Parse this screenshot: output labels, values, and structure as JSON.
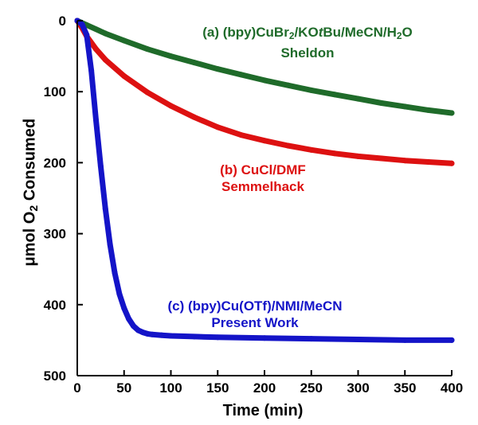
{
  "chart_data": {
    "type": "line",
    "xlabel": "Time (min)",
    "ylabel": {
      "prefix": "μmol O",
      "sub": "2",
      "suffix": " Consumed"
    },
    "xlim": [
      0,
      400
    ],
    "ylim": [
      0,
      500
    ],
    "y_inverted": true,
    "xticks": [
      0,
      50,
      100,
      150,
      200,
      250,
      300,
      350,
      400
    ],
    "yticks": [
      0,
      100,
      200,
      300,
      400,
      500
    ],
    "grid": false,
    "series": [
      {
        "name": "(a) (bpy)CuBr2/KOtBu/MeCN/H2O Sheldon",
        "color": "#1f6b2a",
        "x": [
          0,
          10,
          20,
          30,
          50,
          75,
          100,
          125,
          150,
          175,
          200,
          225,
          250,
          275,
          300,
          325,
          350,
          375,
          400
        ],
        "y": [
          0,
          6,
          12,
          18,
          28,
          40,
          50,
          59,
          68,
          76,
          84,
          91,
          98,
          104,
          110,
          116,
          121,
          126,
          130
        ]
      },
      {
        "name": "(b) CuCl/DMF Semmelhack",
        "color": "#dd1111",
        "x": [
          0,
          5,
          10,
          20,
          30,
          50,
          75,
          100,
          125,
          150,
          175,
          200,
          225,
          250,
          275,
          300,
          325,
          350,
          375,
          400
        ],
        "y": [
          0,
          10,
          22,
          40,
          55,
          78,
          101,
          120,
          136,
          150,
          161,
          169,
          176,
          182,
          187,
          191,
          194,
          197,
          199,
          201
        ]
      },
      {
        "name": "(c) (bpy)Cu(OTf)/NMI/MeCN Present Work",
        "color": "#1414c8",
        "x": [
          0,
          5,
          10,
          15,
          20,
          25,
          30,
          35,
          40,
          45,
          50,
          55,
          60,
          65,
          70,
          75,
          80,
          90,
          100,
          125,
          150,
          200,
          250,
          300,
          350,
          400
        ],
        "y": [
          0,
          5,
          20,
          70,
          140,
          205,
          265,
          315,
          355,
          385,
          405,
          420,
          430,
          436,
          439,
          441,
          442,
          443,
          444,
          445,
          446,
          447,
          448,
          449,
          450,
          450
        ]
      }
    ]
  },
  "annotations": {
    "a": {
      "line1": {
        "pre": "(a) (bpy)CuBr",
        "sub1": "2",
        "mid": "/KO",
        "ital": "t",
        "post": "Bu/MeCN/H",
        "sub2": "2",
        "end": "O"
      },
      "line2": "Sheldon"
    },
    "b": {
      "line1": "(b) CuCl/DMF",
      "line2": "Semmelhack"
    },
    "c": {
      "line1": "(c) (bpy)Cu(OTf)/NMI/MeCN",
      "line2": "Present Work"
    }
  }
}
